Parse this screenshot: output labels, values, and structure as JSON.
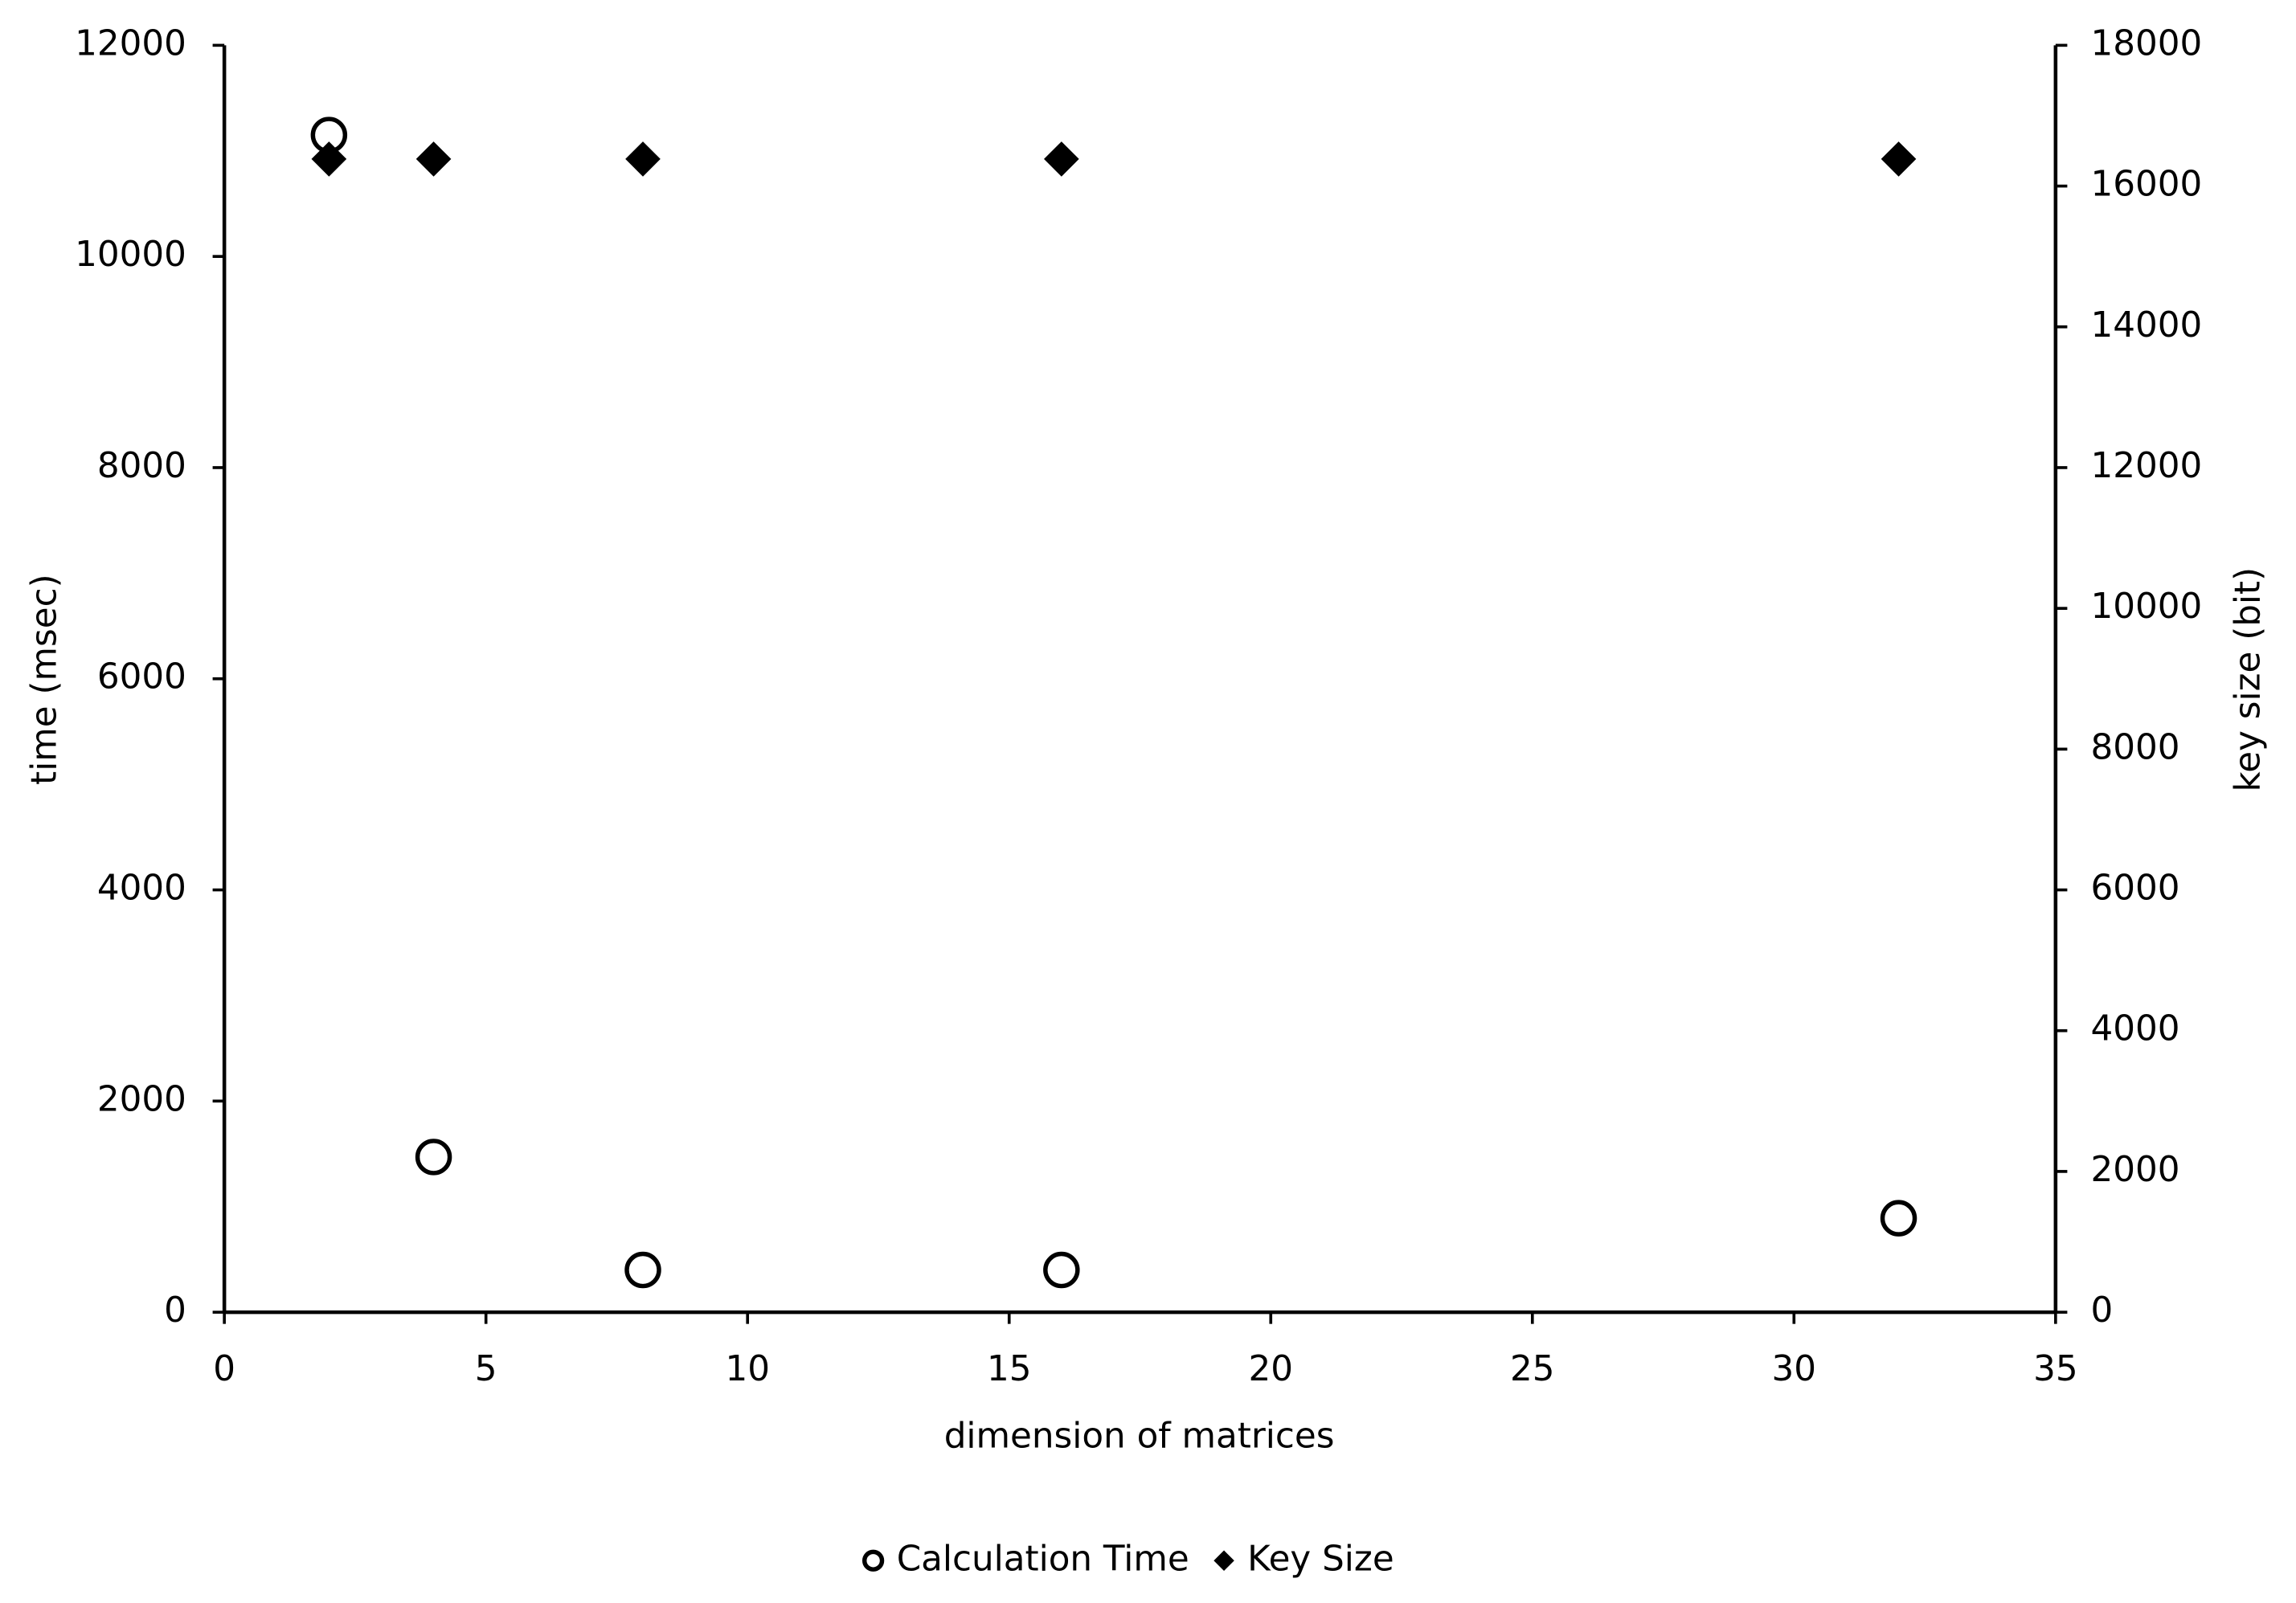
{
  "chart_data": {
    "type": "scatter",
    "x_label": "dimension  of matrices",
    "y_label": "time (msec)",
    "y2_label": "key size (bit)",
    "xlim": [
      0,
      35
    ],
    "xticks": [
      0,
      5,
      10,
      15,
      20,
      25,
      30,
      35
    ],
    "ylim": [
      0,
      12000
    ],
    "yticks": [
      0,
      2000,
      4000,
      6000,
      8000,
      10000,
      12000
    ],
    "y2lim": [
      0,
      18000
    ],
    "y2ticks": [
      0,
      2000,
      4000,
      6000,
      8000,
      10000,
      12000,
      14000,
      16000,
      18000
    ],
    "legend": "bottom",
    "grid": false,
    "series": [
      {
        "name": "Calculation Time",
        "color": "#000000",
        "marker": "circle",
        "x": [
          2,
          4,
          8,
          16,
          32
        ],
        "values": [
          11150,
          1470,
          400,
          400,
          890
        ]
      },
      {
        "name": "Key Size",
        "color": "#000000",
        "marker": "diamond",
        "axis": "y2",
        "x": [
          2,
          4,
          8,
          16,
          32
        ],
        "values": [
          16384,
          16384,
          16384,
          16384,
          16384
        ]
      }
    ]
  }
}
